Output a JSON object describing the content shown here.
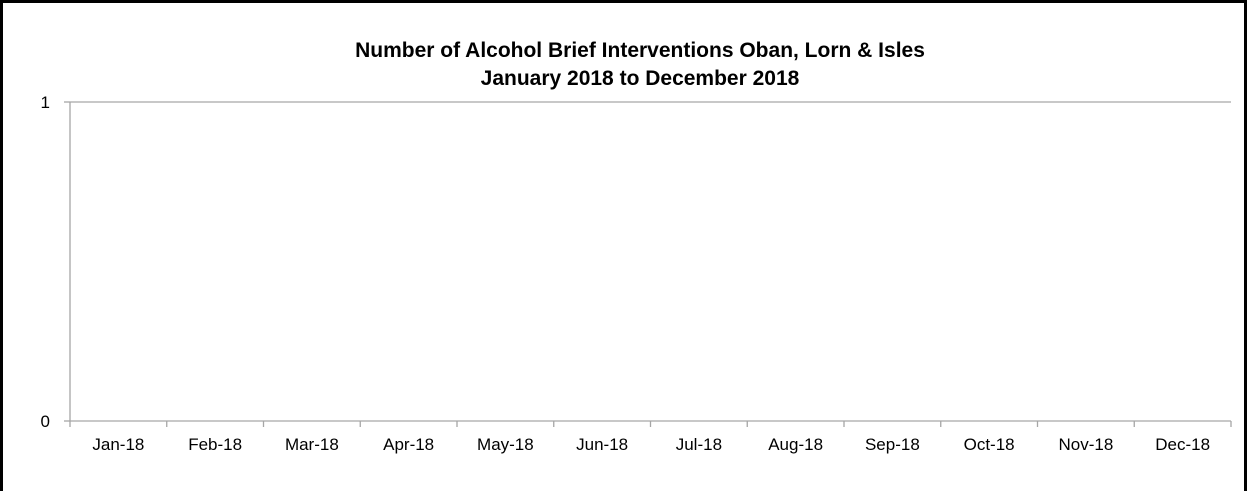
{
  "chart_data": {
    "type": "line",
    "title": "Number of Alcohol Brief Interventions Oban, Lorn & Isles",
    "subtitle": "January 2018 to December 2018",
    "categories": [
      "Jan-18",
      "Feb-18",
      "Mar-18",
      "Apr-18",
      "May-18",
      "Jun-18",
      "Jul-18",
      "Aug-18",
      "Sep-18",
      "Oct-18",
      "Nov-18",
      "Dec-18"
    ],
    "series": [],
    "xlabel": "",
    "ylabel": "",
    "ylim": [
      0,
      1
    ],
    "yticks": [
      "0",
      "1"
    ],
    "grid": false,
    "legend": "none",
    "colors": {
      "axis": "#a6a6a6",
      "frame": "#000000",
      "text": "#000000"
    }
  }
}
